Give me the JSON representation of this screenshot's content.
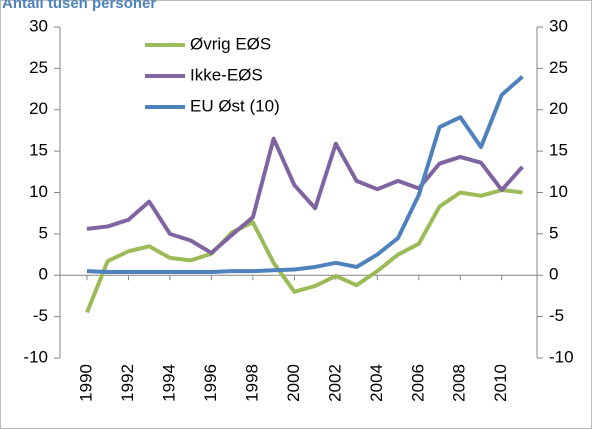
{
  "chart_data": {
    "type": "line",
    "title": "Antall tusen personer",
    "x": [
      1990,
      1991,
      1992,
      1993,
      1994,
      1995,
      1996,
      1997,
      1998,
      1999,
      2000,
      2001,
      2002,
      2003,
      2004,
      2005,
      2006,
      2007,
      2008,
      2009,
      2010,
      2011
    ],
    "xlim": [
      1988.7,
      2011.7
    ],
    "xticks": [
      1990,
      1992,
      1994,
      1996,
      1998,
      2000,
      2002,
      2004,
      2006,
      2008,
      2010
    ],
    "ylim": [
      -10,
      30
    ],
    "yticks": [
      -10,
      -5,
      0,
      5,
      10,
      15,
      20,
      25,
      30
    ],
    "y2lim": [
      -10,
      30
    ],
    "y2ticks": [
      -10,
      -5,
      0,
      5,
      10,
      15,
      20,
      25,
      30
    ],
    "grid": false,
    "legend": "top-left",
    "series": [
      {
        "name": "Øvrig EØS",
        "color": "#9bbb59",
        "values": [
          -4.5,
          1.7,
          2.9,
          3.5,
          2.1,
          1.8,
          2.6,
          5.2,
          6.4,
          1.5,
          -2.0,
          -1.3,
          -0.1,
          -1.2,
          0.5,
          2.5,
          3.8,
          8.3,
          10.0,
          9.6,
          10.3,
          10.0
        ]
      },
      {
        "name": "Ikke-EØS",
        "color": "#8064a2",
        "values": [
          5.6,
          5.9,
          6.7,
          8.9,
          5.0,
          4.2,
          2.7,
          4.9,
          7.0,
          16.5,
          10.9,
          8.1,
          15.9,
          11.4,
          10.4,
          11.4,
          10.5,
          13.5,
          14.3,
          13.6,
          10.3,
          13.1
        ]
      },
      {
        "name": "EU Øst (10)",
        "color": "#4f81bd",
        "values": [
          0.5,
          0.4,
          0.4,
          0.4,
          0.4,
          0.4,
          0.4,
          0.5,
          0.5,
          0.6,
          0.7,
          1.0,
          1.5,
          1.0,
          2.5,
          4.5,
          9.7,
          17.9,
          19.1,
          15.5,
          21.8,
          24.0
        ]
      }
    ]
  }
}
